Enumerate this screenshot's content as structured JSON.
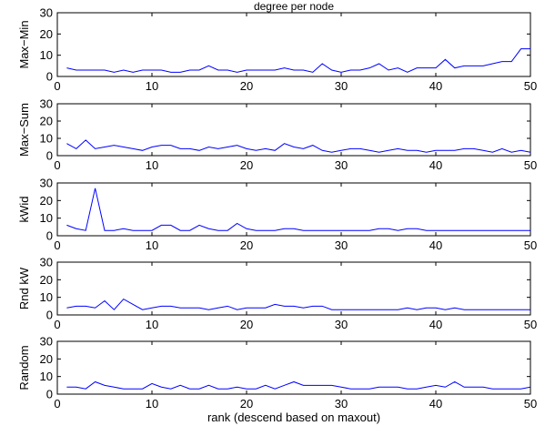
{
  "chart_data": [
    {
      "type": "line",
      "title": "degree per node",
      "ylabel": "Max−Min",
      "xlabel": "",
      "xlim": [
        0,
        50
      ],
      "ylim": [
        0,
        30
      ],
      "xticks": [
        0,
        10,
        20,
        30,
        40,
        50
      ],
      "yticks": [
        0,
        10,
        20,
        30
      ],
      "grid": false,
      "color": "#0000ff",
      "x": [
        1,
        2,
        3,
        4,
        5,
        6,
        7,
        8,
        9,
        10,
        11,
        12,
        13,
        14,
        15,
        16,
        17,
        18,
        19,
        20,
        21,
        22,
        23,
        24,
        25,
        26,
        27,
        28,
        29,
        30,
        31,
        32,
        33,
        34,
        35,
        36,
        37,
        38,
        39,
        40,
        41,
        42,
        43,
        44,
        45,
        46,
        47,
        48,
        49,
        50
      ],
      "values": [
        4,
        3,
        3,
        3,
        3,
        2,
        3,
        2,
        3,
        3,
        3,
        2,
        2,
        3,
        3,
        5,
        3,
        3,
        2,
        3,
        3,
        3,
        3,
        4,
        3,
        3,
        2,
        6,
        3,
        2,
        3,
        3,
        4,
        6,
        3,
        4,
        2,
        4,
        4,
        4,
        8,
        4,
        5,
        5,
        5,
        6,
        7,
        7,
        13,
        13
      ]
    },
    {
      "type": "line",
      "title": "",
      "ylabel": "Max−Sum",
      "xlabel": "",
      "xlim": [
        0,
        50
      ],
      "ylim": [
        0,
        30
      ],
      "xticks": [
        0,
        10,
        20,
        30,
        40,
        50
      ],
      "yticks": [
        0,
        10,
        20,
        30
      ],
      "grid": false,
      "color": "#0000ff",
      "x": [
        1,
        2,
        3,
        4,
        5,
        6,
        7,
        8,
        9,
        10,
        11,
        12,
        13,
        14,
        15,
        16,
        17,
        18,
        19,
        20,
        21,
        22,
        23,
        24,
        25,
        26,
        27,
        28,
        29,
        30,
        31,
        32,
        33,
        34,
        35,
        36,
        37,
        38,
        39,
        40,
        41,
        42,
        43,
        44,
        45,
        46,
        47,
        48,
        49,
        50
      ],
      "values": [
        7,
        4,
        9,
        4,
        5,
        6,
        5,
        4,
        3,
        5,
        6,
        6,
        4,
        4,
        3,
        5,
        4,
        5,
        6,
        4,
        3,
        4,
        3,
        7,
        5,
        4,
        6,
        3,
        2,
        3,
        4,
        4,
        3,
        2,
        3,
        4,
        3,
        3,
        2,
        3,
        3,
        3,
        4,
        4,
        3,
        2,
        4,
        2,
        3,
        2
      ]
    },
    {
      "type": "line",
      "title": "",
      "ylabel": "kWid",
      "xlabel": "",
      "xlim": [
        0,
        50
      ],
      "ylim": [
        0,
        30
      ],
      "xticks": [
        0,
        10,
        20,
        30,
        40,
        50
      ],
      "yticks": [
        0,
        10,
        20,
        30
      ],
      "grid": false,
      "color": "#0000ff",
      "x": [
        1,
        2,
        3,
        4,
        5,
        6,
        7,
        8,
        9,
        10,
        11,
        12,
        13,
        14,
        15,
        16,
        17,
        18,
        19,
        20,
        21,
        22,
        23,
        24,
        25,
        26,
        27,
        28,
        29,
        30,
        31,
        32,
        33,
        34,
        35,
        36,
        37,
        38,
        39,
        40,
        41,
        42,
        43,
        44,
        45,
        46,
        47,
        48,
        49,
        50
      ],
      "values": [
        6,
        4,
        3,
        27,
        3,
        3,
        4,
        3,
        3,
        3,
        6,
        6,
        3,
        3,
        6,
        4,
        3,
        3,
        7,
        4,
        3,
        3,
        3,
        4,
        4,
        3,
        3,
        3,
        3,
        3,
        3,
        3,
        3,
        4,
        4,
        3,
        4,
        4,
        3,
        3,
        3,
        3,
        3,
        3,
        3,
        3,
        3,
        3,
        3,
        3
      ]
    },
    {
      "type": "line",
      "title": "",
      "ylabel": "Rnd kW",
      "xlabel": "",
      "xlim": [
        0,
        50
      ],
      "ylim": [
        0,
        30
      ],
      "xticks": [
        0,
        10,
        20,
        30,
        40,
        50
      ],
      "yticks": [
        0,
        10,
        20,
        30
      ],
      "grid": false,
      "color": "#0000ff",
      "x": [
        1,
        2,
        3,
        4,
        5,
        6,
        7,
        8,
        9,
        10,
        11,
        12,
        13,
        14,
        15,
        16,
        17,
        18,
        19,
        20,
        21,
        22,
        23,
        24,
        25,
        26,
        27,
        28,
        29,
        30,
        31,
        32,
        33,
        34,
        35,
        36,
        37,
        38,
        39,
        40,
        41,
        42,
        43,
        44,
        45,
        46,
        47,
        48,
        49,
        50
      ],
      "values": [
        4,
        5,
        5,
        4,
        8,
        3,
        9,
        6,
        3,
        4,
        5,
        5,
        4,
        4,
        4,
        3,
        4,
        5,
        3,
        4,
        4,
        4,
        6,
        5,
        5,
        4,
        5,
        5,
        3,
        3,
        3,
        3,
        3,
        3,
        3,
        3,
        4,
        3,
        4,
        4,
        3,
        4,
        3,
        3,
        3,
        3,
        3,
        3,
        3,
        3
      ]
    },
    {
      "type": "line",
      "title": "",
      "ylabel": "Random",
      "xlabel": "rank (descend based on maxout)",
      "xlim": [
        0,
        50
      ],
      "ylim": [
        0,
        30
      ],
      "xticks": [
        0,
        10,
        20,
        30,
        40,
        50
      ],
      "yticks": [
        0,
        10,
        20,
        30
      ],
      "grid": false,
      "color": "#0000ff",
      "x": [
        1,
        2,
        3,
        4,
        5,
        6,
        7,
        8,
        9,
        10,
        11,
        12,
        13,
        14,
        15,
        16,
        17,
        18,
        19,
        20,
        21,
        22,
        23,
        24,
        25,
        26,
        27,
        28,
        29,
        30,
        31,
        32,
        33,
        34,
        35,
        36,
        37,
        38,
        39,
        40,
        41,
        42,
        43,
        44,
        45,
        46,
        47,
        48,
        49,
        50
      ],
      "values": [
        4,
        4,
        3,
        7,
        5,
        4,
        3,
        3,
        3,
        6,
        4,
        3,
        5,
        3,
        3,
        5,
        3,
        3,
        4,
        3,
        3,
        5,
        3,
        5,
        7,
        5,
        5,
        5,
        5,
        4,
        3,
        3,
        3,
        4,
        4,
        4,
        3,
        3,
        4,
        5,
        4,
        7,
        4,
        4,
        4,
        3,
        3,
        3,
        3,
        4
      ]
    }
  ]
}
